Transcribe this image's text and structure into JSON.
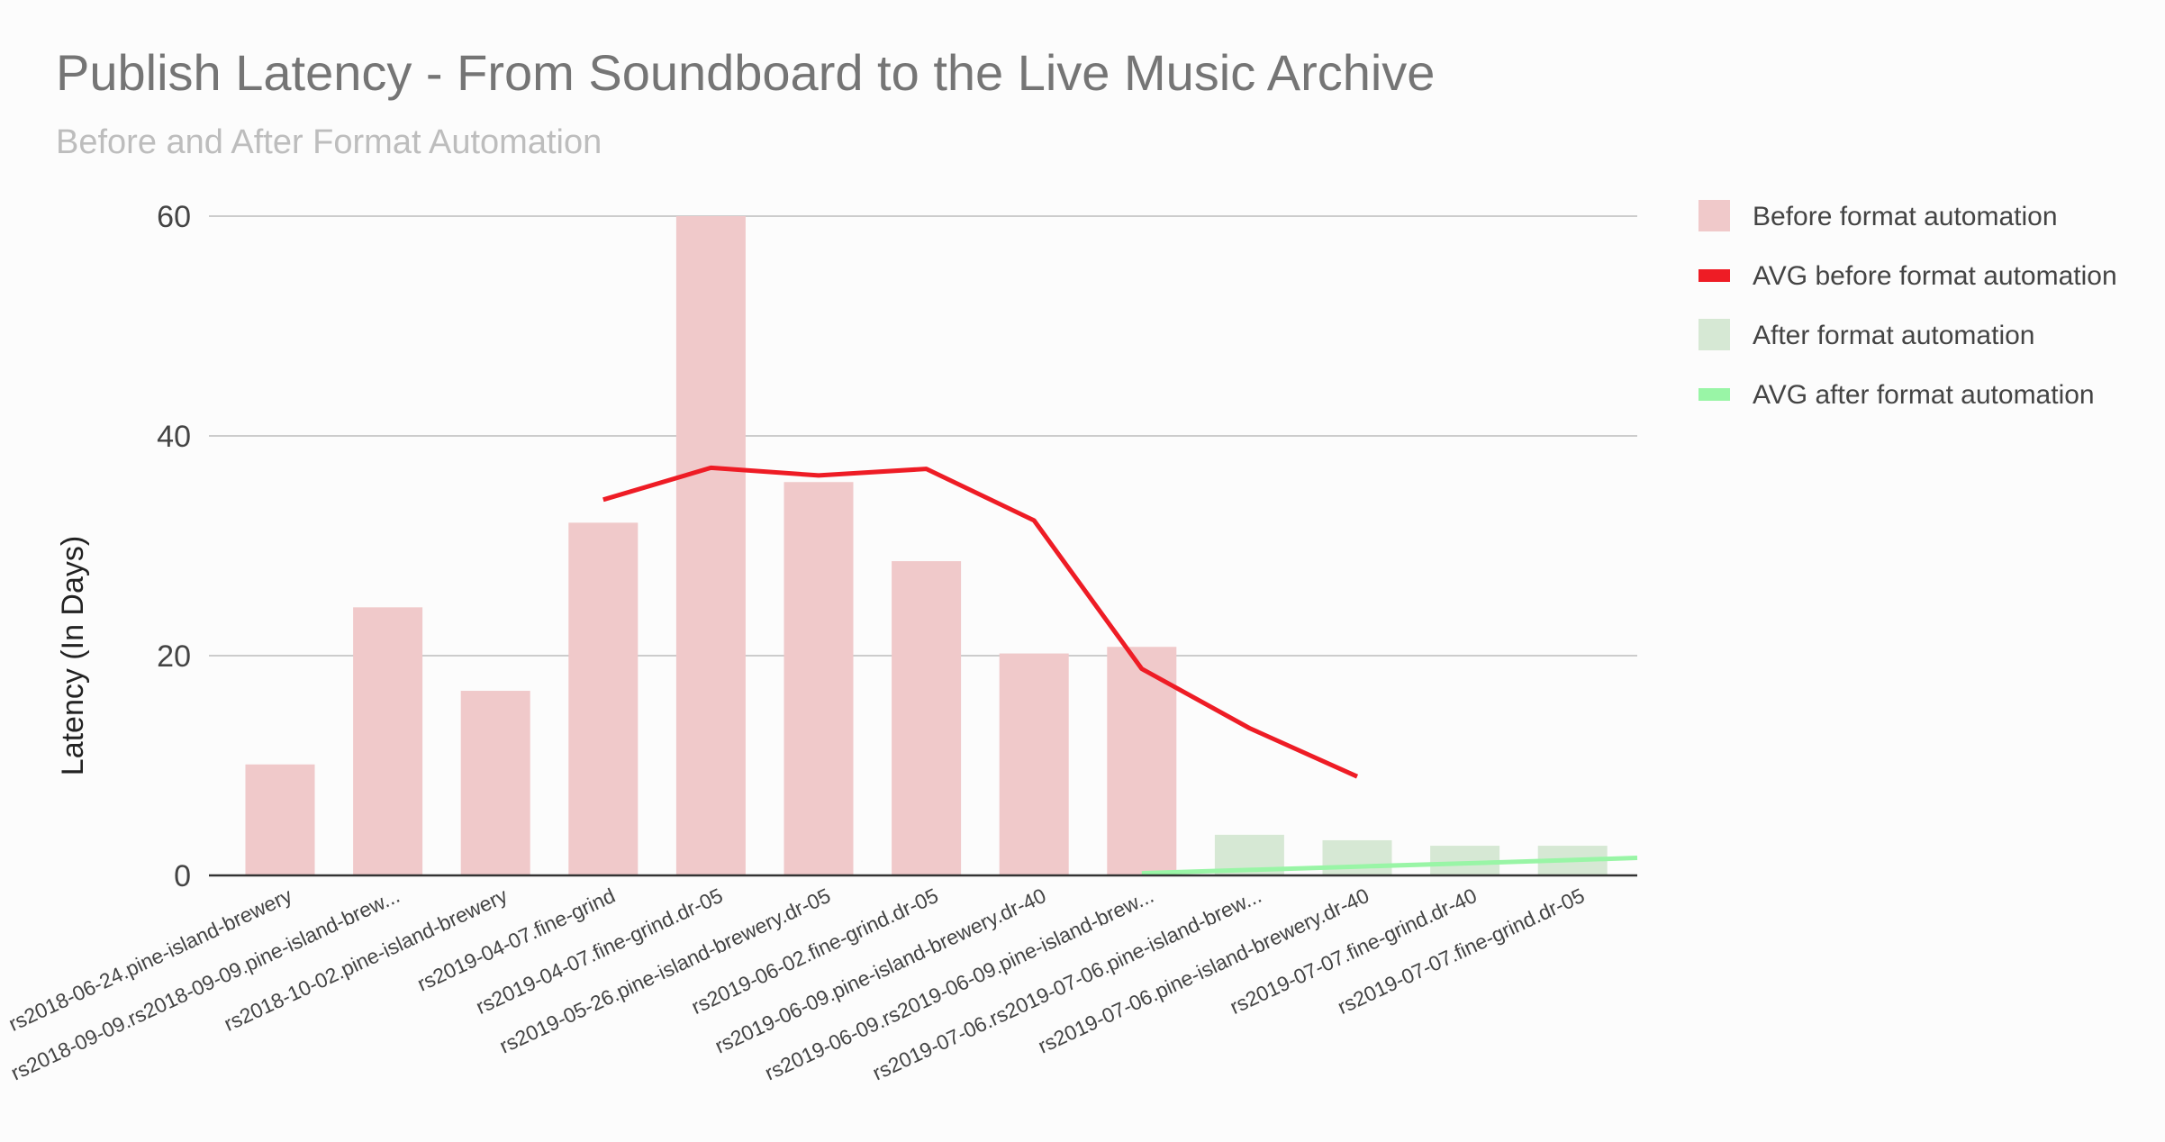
{
  "chart_data": {
    "type": "bar",
    "title": "Publish Latency - From Soundboard to the Live Music Archive",
    "subtitle": "Before and After Format Automation",
    "xlabel": "",
    "ylabel": "Latency  (In Days)",
    "ylim": [
      0,
      60
    ],
    "yticks": [
      0,
      20,
      40,
      60
    ],
    "grid": true,
    "legend_position": "right",
    "categories": [
      "rs2018-06-24.pine-island-brewery",
      "rs2018-09-09.rs2018-09-09.pine-island-brew...",
      "rs2018-10-02.pine-island-brewery",
      "rs2019-04-07.fine-grind",
      "rs2019-04-07.fine-grind.dr-05",
      "rs2019-05-26.pine-island-brewery.dr-05",
      "rs2019-06-02.fine-grind.dr-05",
      "rs2019-06-09.pine-island-brewery.dr-40",
      "rs2019-06-09.rs2019-06-09.pine-island-brew...",
      "rs2019-07-06.rs2019-07-06.pine-island-brew...",
      "rs2019-07-06.pine-island-brewery.dr-40",
      "rs2019-07-07.fine-grind.dr-40",
      "rs2019-07-07.fine-grind.dr-05"
    ],
    "series": [
      {
        "name": "Before format automation",
        "kind": "bar",
        "color": "#f0c9ca",
        "values": [
          10.1,
          24.4,
          16.8,
          32.1,
          60,
          35.8,
          28.6,
          20.2,
          20.8,
          null,
          null,
          null,
          null
        ]
      },
      {
        "name": "AVG before format automation",
        "kind": "line",
        "color": "#ee1c25",
        "values": [
          null,
          null,
          null,
          34.2,
          37.1,
          36.4,
          37.0,
          32.3,
          18.8,
          13.4,
          9.0,
          null,
          null
        ]
      },
      {
        "name": "After format automation",
        "kind": "bar",
        "color": "#d6e8d4",
        "values": [
          null,
          null,
          null,
          null,
          null,
          null,
          null,
          null,
          null,
          3.7,
          3.2,
          2.7,
          2.7
        ]
      },
      {
        "name": "AVG after format automation",
        "kind": "line",
        "color": "#99f5a6",
        "values": [
          null,
          null,
          null,
          null,
          null,
          null,
          null,
          null,
          0.2,
          0.5,
          0.8,
          1.1,
          1.4
        ],
        "extends_to_right_edge": 1.6
      }
    ]
  }
}
